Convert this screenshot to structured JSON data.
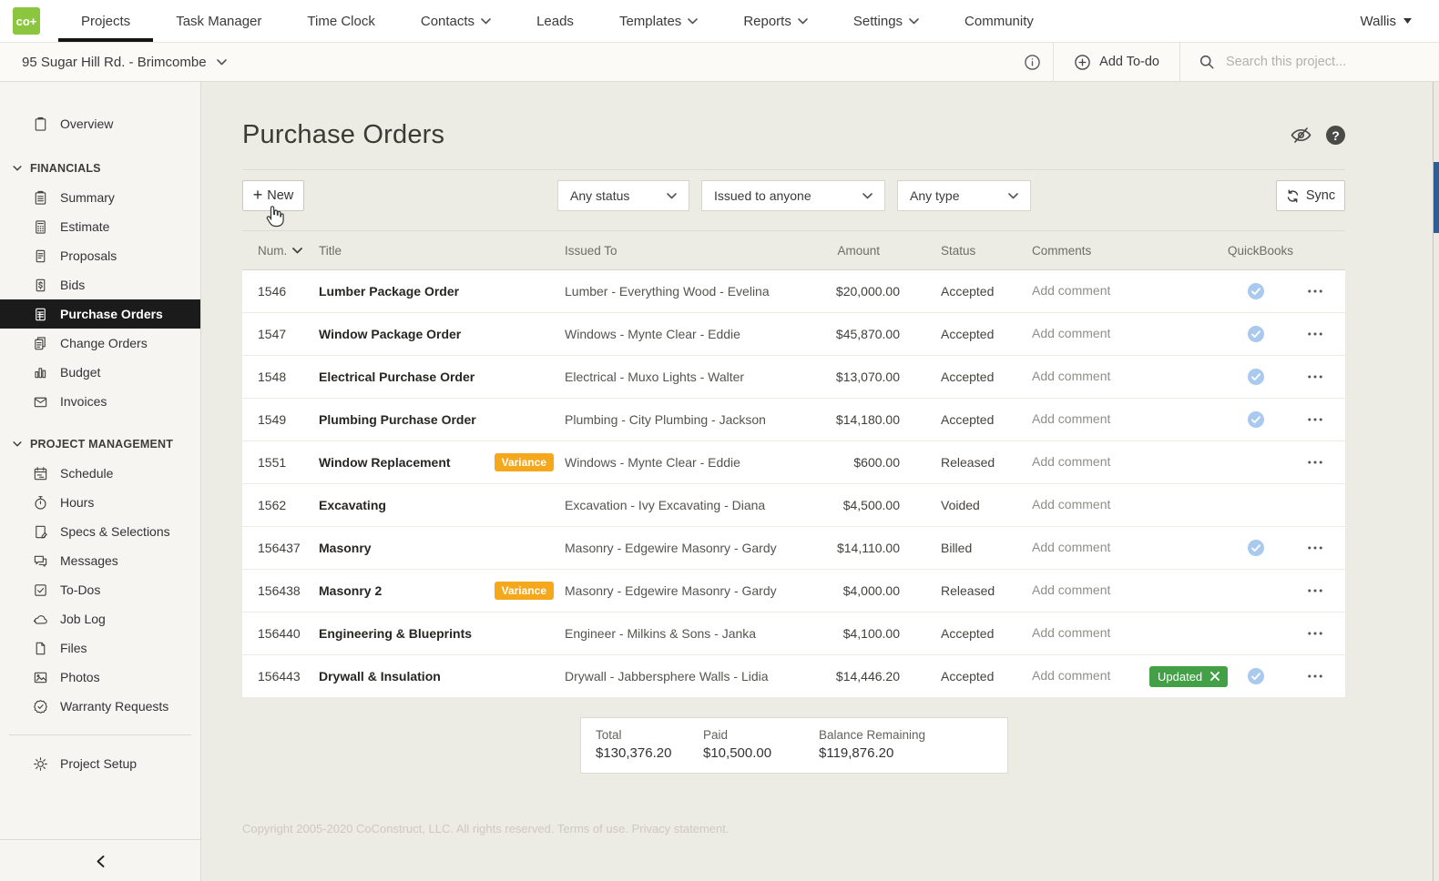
{
  "colors": {
    "brand_green": "#8cc63e",
    "active_black": "#1b1b1b",
    "variance_orange": "#f5a81c",
    "updated_green": "#43a047",
    "quickbooks_blue": "#a9c9ee",
    "page_background": "#ecebe4"
  },
  "top_nav": {
    "logo": "co+",
    "items": [
      {
        "label": "Projects",
        "active": true,
        "dropdown": false
      },
      {
        "label": "Task Manager",
        "active": false,
        "dropdown": false
      },
      {
        "label": "Time Clock",
        "active": false,
        "dropdown": false
      },
      {
        "label": "Contacts",
        "active": false,
        "dropdown": true
      },
      {
        "label": "Leads",
        "active": false,
        "dropdown": false
      },
      {
        "label": "Templates",
        "active": false,
        "dropdown": true
      },
      {
        "label": "Reports",
        "active": false,
        "dropdown": true
      },
      {
        "label": "Settings",
        "active": false,
        "dropdown": true
      },
      {
        "label": "Community",
        "active": false,
        "dropdown": false
      }
    ],
    "user": "Wallis"
  },
  "project_bar": {
    "project_name": "95 Sugar Hill Rd. - Brimcombe",
    "add_todo_label": "Add To-do",
    "search_placeholder": "Search this project..."
  },
  "sidebar": {
    "overview": {
      "label": "Overview",
      "icon": "clipboard-icon"
    },
    "sections": [
      {
        "title": "FINANCIALS",
        "items": [
          {
            "label": "Summary",
            "icon": "summary-icon",
            "active": false
          },
          {
            "label": "Estimate",
            "icon": "calculator-icon",
            "active": false
          },
          {
            "label": "Proposals",
            "icon": "proposal-icon",
            "active": false
          },
          {
            "label": "Bids",
            "icon": "bids-icon",
            "active": false
          },
          {
            "label": "Purchase Orders",
            "icon": "purchase-orders-icon",
            "active": true
          },
          {
            "label": "Change Orders",
            "icon": "change-orders-icon",
            "active": false
          },
          {
            "label": "Budget",
            "icon": "budget-icon",
            "active": false
          },
          {
            "label": "Invoices",
            "icon": "invoices-icon",
            "active": false
          }
        ]
      },
      {
        "title": "PROJECT MANAGEMENT",
        "items": [
          {
            "label": "Schedule",
            "icon": "schedule-icon",
            "active": false
          },
          {
            "label": "Hours",
            "icon": "hours-icon",
            "active": false
          },
          {
            "label": "Specs & Selections",
            "icon": "specs-icon",
            "active": false
          },
          {
            "label": "Messages",
            "icon": "messages-icon",
            "active": false
          },
          {
            "label": "To-Dos",
            "icon": "todos-icon",
            "active": false
          },
          {
            "label": "Job Log",
            "icon": "joblog-icon",
            "active": false
          },
          {
            "label": "Files",
            "icon": "files-icon",
            "active": false
          },
          {
            "label": "Photos",
            "icon": "photos-icon",
            "active": false
          },
          {
            "label": "Warranty Requests",
            "icon": "warranty-icon",
            "active": false
          }
        ]
      }
    ],
    "setup": {
      "label": "Project Setup",
      "icon": "gear-icon"
    }
  },
  "main": {
    "title": "Purchase Orders",
    "toolbar": {
      "new_label": "New",
      "filters": [
        {
          "value": "Any status"
        },
        {
          "value": "Issued to anyone"
        },
        {
          "value": "Any type"
        }
      ],
      "sync_label": "Sync"
    },
    "badges": {
      "variance": "Variance",
      "updated": "Updated"
    },
    "table": {
      "headers": {
        "num": "Num.",
        "title": "Title",
        "issued_to": "Issued To",
        "amount": "Amount",
        "status": "Status",
        "comments": "Comments",
        "quickbooks": "QuickBooks"
      },
      "add_comment_label": "Add comment",
      "rows": [
        {
          "num": "1546",
          "title": "Lumber Package Order",
          "variance": false,
          "issued_to": "Lumber - Everything Wood - Evelina",
          "amount": "$20,000.00",
          "status": "Accepted",
          "updated": false,
          "quickbooks": true,
          "menu": true
        },
        {
          "num": "1547",
          "title": "Window Package Order",
          "variance": false,
          "issued_to": "Windows - Mynte Clear - Eddie",
          "amount": "$45,870.00",
          "status": "Accepted",
          "updated": false,
          "quickbooks": true,
          "menu": true
        },
        {
          "num": "1548",
          "title": "Electrical Purchase Order",
          "variance": false,
          "issued_to": "Electrical - Muxo Lights - Walter",
          "amount": "$13,070.00",
          "status": "Accepted",
          "updated": false,
          "quickbooks": true,
          "menu": true
        },
        {
          "num": "1549",
          "title": "Plumbing Purchase Order",
          "variance": false,
          "issued_to": "Plumbing - City Plumbing - Jackson",
          "amount": "$14,180.00",
          "status": "Accepted",
          "updated": false,
          "quickbooks": true,
          "menu": true
        },
        {
          "num": "1551",
          "title": "Window Replacement",
          "variance": true,
          "issued_to": "Windows - Mynte Clear - Eddie",
          "amount": "$600.00",
          "status": "Released",
          "updated": false,
          "quickbooks": false,
          "menu": true
        },
        {
          "num": "1562",
          "title": "Excavating",
          "variance": false,
          "issued_to": "Excavation - Ivy Excavating - Diana",
          "amount": "$4,500.00",
          "status": "Voided",
          "updated": false,
          "quickbooks": false,
          "menu": false
        },
        {
          "num": "156437",
          "title": "Masonry",
          "variance": false,
          "issued_to": "Masonry - Edgewire Masonry - Gardy",
          "amount": "$14,110.00",
          "status": "Billed",
          "updated": false,
          "quickbooks": true,
          "menu": true
        },
        {
          "num": "156438",
          "title": "Masonry 2",
          "variance": true,
          "issued_to": "Masonry - Edgewire Masonry - Gardy",
          "amount": "$4,000.00",
          "status": "Released",
          "updated": false,
          "quickbooks": false,
          "menu": true
        },
        {
          "num": "156440",
          "title": "Engineering & Blueprints",
          "variance": false,
          "issued_to": "Engineer - Milkins & Sons - Janka",
          "amount": "$4,100.00",
          "status": "Accepted",
          "updated": false,
          "quickbooks": false,
          "menu": true
        },
        {
          "num": "156443",
          "title": "Drywall & Insulation",
          "variance": false,
          "issued_to": "Drywall - Jabbersphere Walls - Lidia",
          "amount": "$14,446.20",
          "status": "Accepted",
          "updated": true,
          "quickbooks": true,
          "menu": true
        }
      ]
    },
    "totals": {
      "total_label": "Total",
      "total_value": "$130,376.20",
      "paid_label": "Paid",
      "paid_value": "$10,500.00",
      "balance_label": "Balance Remaining",
      "balance_value": "$119,876.20"
    },
    "footer": {
      "copyright": "Copyright 2005-2020 CoConstruct, LLC. All rights reserved.",
      "terms": "Terms of use.",
      "privacy": "Privacy statement."
    }
  }
}
